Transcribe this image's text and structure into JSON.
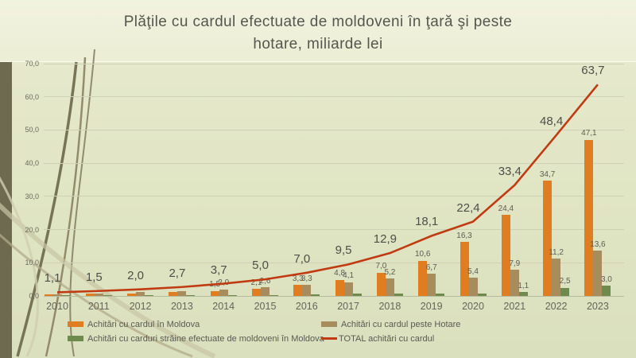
{
  "slide": {
    "title_line1": "Plăţile cu cardul efectuate de moldoveni în ţară şi peste",
    "title_line2": "hotare, miliarde lei"
  },
  "chart_data": {
    "type": "bar",
    "title": "Plăţile cu cardul efectuate de moldoveni în ţară şi peste hotare, miliarde lei",
    "categories": [
      "2010",
      "2011",
      "2012",
      "2013",
      "2014",
      "2015",
      "2016",
      "2017",
      "2018",
      "2019",
      "2020",
      "2021",
      "2022",
      "2023"
    ],
    "series": [
      {
        "name": "Achitări cu cardul în Moldova",
        "type": "bar",
        "color": "#df7d20",
        "values": [
          0.5,
          0.6,
          0.8,
          1.1,
          1.5,
          2.1,
          3.3,
          4.8,
          7.0,
          10.6,
          16.3,
          24.4,
          34.7,
          47.1
        ],
        "labels": [
          "",
          "",
          "",
          "",
          "1,5",
          "2,1",
          "3,3",
          "4,8",
          "7,0",
          "10,6",
          "16,3",
          "24,4",
          "34,7",
          "47,1"
        ]
      },
      {
        "name": "Achitări cu cardul peste Hotare",
        "type": "bar",
        "color": "#a78c5e",
        "values": [
          0.5,
          0.8,
          1.1,
          1.5,
          2.0,
          2.6,
          3.3,
          4.1,
          5.2,
          6.7,
          5.4,
          7.9,
          11.2,
          13.6
        ],
        "labels": [
          "",
          "",
          "",
          "",
          "2,0",
          "2,6",
          "3,3",
          "4,1",
          "5,2",
          "6,7",
          "5,4",
          "7,9",
          "11,2",
          "13,6"
        ]
      },
      {
        "name": "Achitări cu carduri străine efectuate de moldoveni în Moldova",
        "type": "bar",
        "color": "#6f8a4d",
        "values": [
          0.1,
          0.1,
          0.1,
          0.15,
          0.2,
          0.3,
          0.4,
          0.6,
          0.7,
          0.8,
          0.7,
          1.1,
          2.5,
          3.0
        ],
        "labels": [
          "",
          "",
          "",
          "",
          "",
          "",
          "",
          "",
          "",
          "",
          "",
          "1,1",
          "2,5",
          "3,0"
        ]
      },
      {
        "name": "TOTAL achitări cu cardul",
        "type": "line",
        "color": "#c03a12",
        "values": [
          1.1,
          1.5,
          2.0,
          2.7,
          3.7,
          5.0,
          7.0,
          9.5,
          12.9,
          18.1,
          22.4,
          33.4,
          48.4,
          63.7
        ],
        "labels": [
          "1,1",
          "1,5",
          "2,0",
          "2,7",
          "3,7",
          "5,0",
          "7,0",
          "9,5",
          "12,9",
          "18,1",
          "22,4",
          "33,4",
          "48,4",
          "63,7"
        ]
      }
    ],
    "y_axis": {
      "min": 0,
      "max": 70,
      "step": 10,
      "tick_labels": [
        "0,0",
        "10,0",
        "20,0",
        "30,0",
        "40,0",
        "50,0",
        "60,0",
        "70,0"
      ]
    },
    "legend_position": "bottom",
    "grid": true
  },
  "colors": {
    "bar_moldova": "#df7d20",
    "bar_hotare": "#a78c5e",
    "bar_straine": "#6f8a4d",
    "total_line": "#c03a12"
  }
}
